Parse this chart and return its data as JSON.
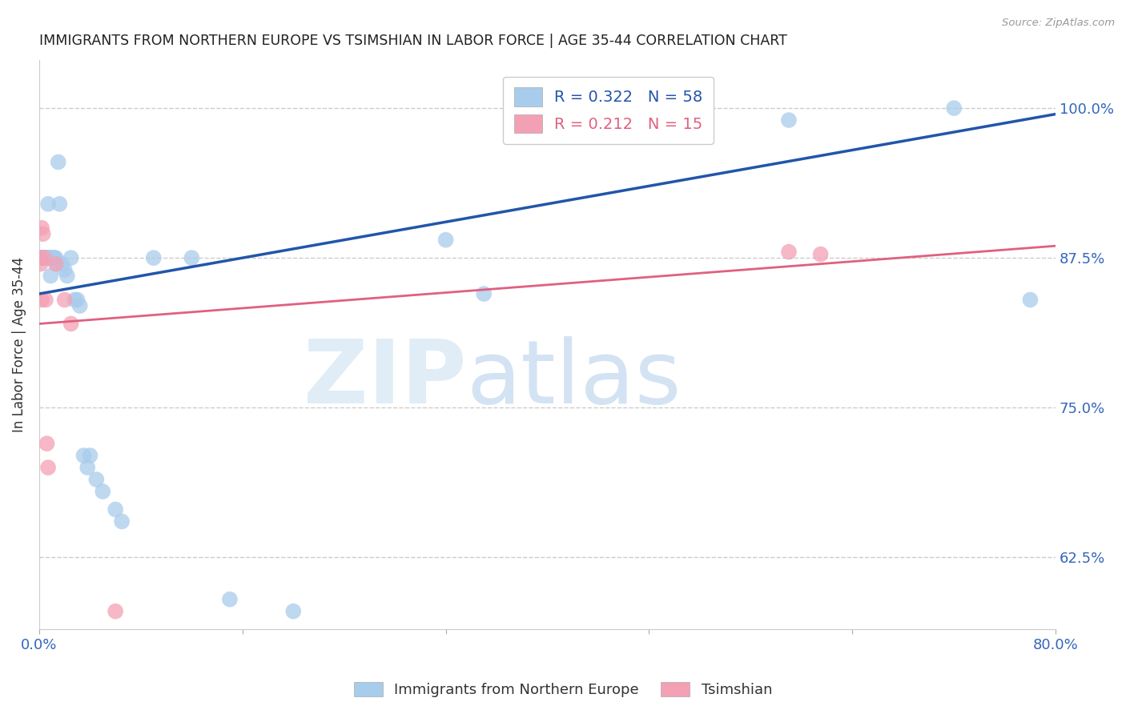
{
  "title": "IMMIGRANTS FROM NORTHERN EUROPE VS TSIMSHIAN IN LABOR FORCE | AGE 35-44 CORRELATION CHART",
  "source": "Source: ZipAtlas.com",
  "ylabel": "In Labor Force | Age 35-44",
  "ytick_labels": [
    "62.5%",
    "75.0%",
    "87.5%",
    "100.0%"
  ],
  "ytick_values": [
    0.625,
    0.75,
    0.875,
    1.0
  ],
  "xlim": [
    0.0,
    0.8
  ],
  "ylim": [
    0.565,
    1.04
  ],
  "blue_label": "Immigrants from Northern Europe",
  "pink_label": "Tsimshian",
  "blue_R": 0.322,
  "blue_N": 58,
  "pink_R": 0.212,
  "pink_N": 15,
  "blue_color": "#A8CCEC",
  "blue_line_color": "#2255AA",
  "pink_color": "#F4A0B4",
  "pink_line_color": "#E06080",
  "blue_x": [
    0.001,
    0.002,
    0.002,
    0.002,
    0.003,
    0.003,
    0.003,
    0.003,
    0.004,
    0.004,
    0.004,
    0.004,
    0.005,
    0.005,
    0.005,
    0.005,
    0.005,
    0.006,
    0.006,
    0.006,
    0.007,
    0.007,
    0.007,
    0.007,
    0.008,
    0.008,
    0.009,
    0.009,
    0.01,
    0.011,
    0.012,
    0.013,
    0.014,
    0.015,
    0.016,
    0.018,
    0.02,
    0.022,
    0.025,
    0.028,
    0.03,
    0.032,
    0.035,
    0.038,
    0.04,
    0.045,
    0.05,
    0.06,
    0.065,
    0.09,
    0.12,
    0.15,
    0.2,
    0.32,
    0.35,
    0.59,
    0.72,
    0.78
  ],
  "blue_y": [
    0.875,
    0.875,
    0.875,
    0.875,
    0.875,
    0.875,
    0.875,
    0.875,
    0.875,
    0.875,
    0.875,
    0.875,
    0.875,
    0.875,
    0.875,
    0.875,
    0.875,
    0.875,
    0.875,
    0.875,
    0.875,
    0.875,
    0.875,
    0.92,
    0.875,
    0.875,
    0.875,
    0.86,
    0.875,
    0.875,
    0.875,
    0.875,
    0.87,
    0.955,
    0.92,
    0.87,
    0.865,
    0.86,
    0.875,
    0.84,
    0.84,
    0.835,
    0.71,
    0.7,
    0.71,
    0.69,
    0.68,
    0.665,
    0.655,
    0.875,
    0.875,
    0.59,
    0.58,
    0.89,
    0.845,
    0.99,
    1.0,
    0.84
  ],
  "pink_x": [
    0.001,
    0.001,
    0.002,
    0.002,
    0.003,
    0.004,
    0.005,
    0.006,
    0.007,
    0.013,
    0.02,
    0.025,
    0.06,
    0.59,
    0.615
  ],
  "pink_y": [
    0.875,
    0.87,
    0.9,
    0.84,
    0.895,
    0.875,
    0.84,
    0.72,
    0.7,
    0.87,
    0.84,
    0.82,
    0.58,
    0.88,
    0.878
  ],
  "blue_line_x0": 0.0,
  "blue_line_x1": 0.8,
  "blue_line_y0": 0.845,
  "blue_line_y1": 0.995,
  "pink_line_x0": 0.0,
  "pink_line_x1": 0.8,
  "pink_line_y0": 0.82,
  "pink_line_y1": 0.885
}
